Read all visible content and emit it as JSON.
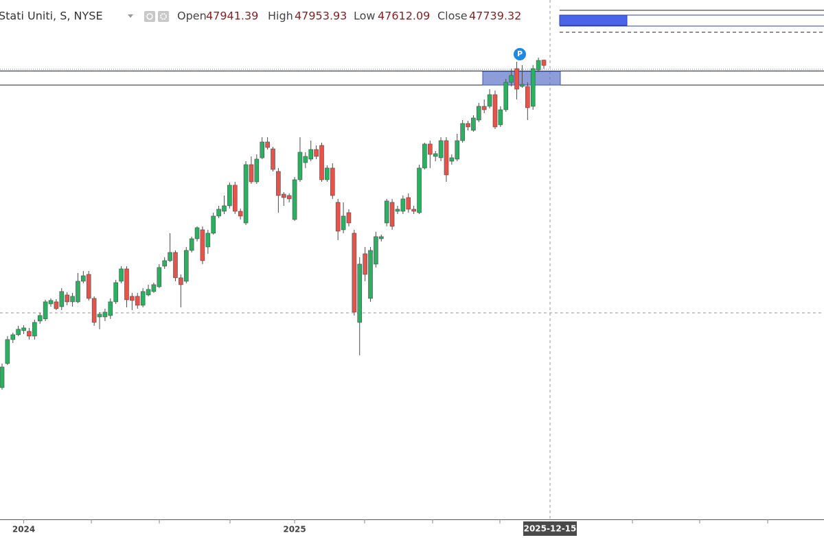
{
  "chart_data": {
    "type": "candlestick",
    "symbol": "Stati Uniti, S, NYSE",
    "ohlc_labels": [
      "Open",
      "High",
      "Low",
      "Close"
    ],
    "annotation": "P",
    "crosshair_label": "2025-12-15",
    "up_color": "#2bb061",
    "down_color": "#e5534b",
    "wick_color": "#4a4a4a",
    "ylim": [
      30300,
      50250
    ],
    "categories": [
      null,
      null,
      null,
      null,
      "2024",
      null,
      null,
      null,
      null,
      null,
      null,
      null,
      null,
      null,
      null,
      null,
      null,
      null,
      null,
      null,
      null,
      null,
      null,
      null,
      null,
      null,
      null,
      null,
      null,
      null,
      null,
      null,
      null,
      null,
      null,
      null,
      null,
      null,
      null,
      null,
      null,
      null,
      null,
      null,
      null,
      null,
      null,
      null,
      null,
      null,
      null,
      null,
      null,
      null,
      "2025",
      null,
      null,
      null,
      null,
      null,
      null,
      null,
      null,
      null,
      null,
      null,
      null,
      null,
      null,
      null,
      null,
      null,
      null,
      null,
      null,
      null,
      null,
      null,
      null,
      null,
      null,
      null,
      null,
      null,
      null,
      null,
      null,
      null,
      null,
      null,
      null,
      null,
      null,
      null,
      null,
      null,
      null,
      null,
      null,
      null,
      null
    ],
    "open": [
      35363,
      36285,
      37207,
      37392,
      37549,
      37523,
      37339,
      37918,
      38000,
      38577,
      38656,
      38471,
      38920,
      38656,
      38656,
      39447,
      39710,
      38788,
      38076,
      38076,
      38129,
      38656,
      39447,
      39921,
      38867,
      38867,
      38524,
      38920,
      39052,
      39236,
      40026,
      40237,
      40553,
      39579,
      39447,
      40632,
      41080,
      41423,
      40764,
      41291,
      41950,
      42134,
      42345,
      43136,
      42134,
      41686,
      43926,
      43267,
      44190,
      44796,
      44532,
      43663,
      42793,
      42740,
      41818,
      43346,
      44005,
      44137,
      44506,
      44664,
      43346,
      43795,
      42477,
      41423,
      42082,
      41291,
      37866,
      40501,
      38788,
      40105,
      41080,
      41686,
      42477,
      42134,
      42134,
      42661,
      42213,
      42082,
      43795,
      44717,
      44242,
      44190,
      44848,
      44058,
      44137,
      44848,
      45507,
      45244,
      45639,
      46166,
      46166,
      46614,
      45455,
      46034,
      47088,
      47615,
      46930,
      46930,
      46166,
      47562,
      47941.39
    ],
    "high": [
      36285,
      37339,
      37470,
      37734,
      37760,
      37655,
      37971,
      38234,
      38735,
      38788,
      38761,
      39183,
      39026,
      39000,
      39763,
      39842,
      39842,
      38867,
      38260,
      38393,
      38788,
      39500,
      40026,
      40026,
      39000,
      39000,
      39183,
      39315,
      39394,
      40105,
      40369,
      41291,
      40632,
      39710,
      40764,
      41160,
      41555,
      41555,
      41423,
      42082,
      42345,
      42740,
      43241,
      43267,
      42240,
      44058,
      44242,
      44321,
      44980,
      44980,
      44611,
      43795,
      42872,
      42819,
      43452,
      44980,
      44401,
      44848,
      44664,
      44770,
      43900,
      43979,
      42609,
      42477,
      42213,
      41423,
      40369,
      40764,
      40764,
      41344,
      41239,
      42609,
      42609,
      42345,
      42740,
      42819,
      42345,
      43926,
      44770,
      44848,
      44453,
      44980,
      44980,
      44321,
      45112,
      45639,
      45613,
      45823,
      46298,
      46430,
      46825,
      46772,
      46166,
      47220,
      47615,
      47878,
      47747,
      47088,
      47747,
      48036,
      47953.93
    ],
    "low": [
      35284,
      36232,
      37075,
      37339,
      37418,
      37207,
      37207,
      37813,
      37918,
      38471,
      38340,
      38340,
      38524,
      38471,
      38603,
      39368,
      38709,
      37734,
      37602,
      37918,
      38000,
      38577,
      39368,
      38445,
      38340,
      38393,
      38445,
      38867,
      39000,
      39183,
      39921,
      40185,
      39447,
      38445,
      39368,
      40553,
      40975,
      40105,
      40501,
      41239,
      41871,
      42029,
      42240,
      42029,
      41818,
      41607,
      43188,
      43188,
      44137,
      44506,
      43663,
      42082,
      42345,
      42477,
      41766,
      43267,
      43795,
      44058,
      44137,
      43267,
      43267,
      42609,
      41028,
      41291,
      41555,
      38129,
      36601,
      39447,
      38656,
      39974,
      40975,
      41555,
      41423,
      42029,
      42029,
      42082,
      42029,
      42029,
      43742,
      43795,
      44058,
      44058,
      43267,
      43926,
      44058,
      44770,
      45244,
      45191,
      45560,
      45902,
      46087,
      45296,
      45375,
      45955,
      46930,
      46430,
      46878,
      45639,
      46034,
      47483,
      47612.09
    ],
    "close": [
      36153,
      37207,
      37392,
      37602,
      37655,
      37339,
      37866,
      38129,
      38656,
      38709,
      38393,
      39052,
      38656,
      38867,
      39447,
      39657,
      38788,
      37866,
      38181,
      38260,
      38656,
      39394,
      39921,
      38735,
      38709,
      38524,
      39052,
      39131,
      39315,
      39974,
      40237,
      40553,
      39579,
      39315,
      40632,
      41080,
      41502,
      40237,
      41291,
      41950,
      42213,
      42345,
      43136,
      42134,
      41950,
      43926,
      43267,
      44137,
      44796,
      44585,
      43742,
      42740,
      42661,
      42609,
      43346,
      44401,
      44242,
      44506,
      44242,
      43346,
      43795,
      42740,
      41370,
      41950,
      41686,
      38261,
      40105,
      39710,
      40632,
      41160,
      41160,
      42530,
      41555,
      42213,
      42609,
      42213,
      42134,
      43795,
      44717,
      44321,
      44348,
      44848,
      43531,
      44190,
      44848,
      45507,
      45375,
      45718,
      46166,
      46034,
      46614,
      45375,
      46034,
      47088,
      47352,
      46825,
      47009,
      46113,
      47615,
      47930,
      47739.32
    ]
  }
}
